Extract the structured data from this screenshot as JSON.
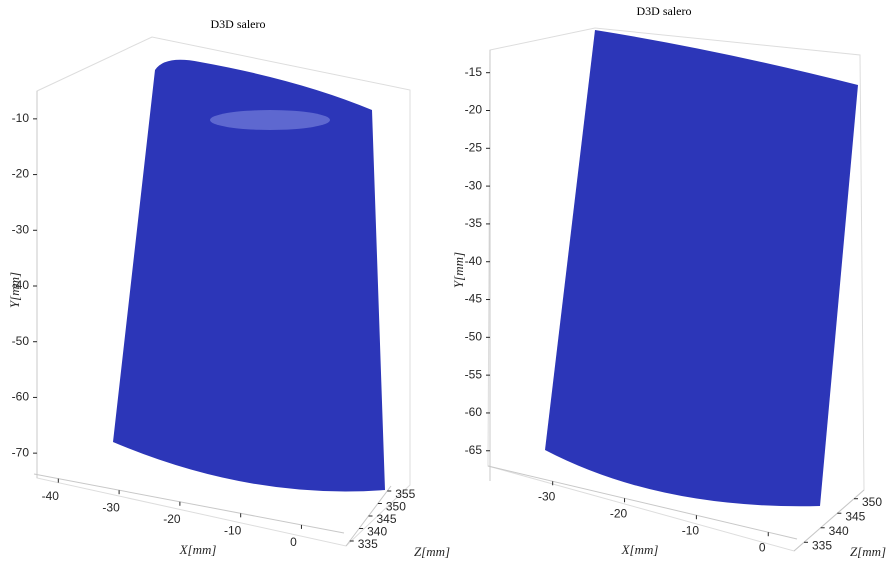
{
  "chart_data": [
    {
      "type": "surface3d",
      "title": "D3D salero",
      "xlabel": "X[mm]",
      "ylabel": "Y[mm]",
      "zlabel": "Z[mm]",
      "color": "#2c36b8",
      "xlim": [
        -44,
        7
      ],
      "xticks": [
        -40,
        -30,
        -20,
        -10,
        0
      ],
      "ylim": [
        -75,
        -5
      ],
      "yticks": [
        -70,
        -60,
        -50,
        -40,
        -30,
        -20,
        -10
      ],
      "zlim": [
        333,
        357
      ],
      "zticks": [
        335,
        340,
        345,
        350,
        355
      ]
    },
    {
      "type": "surface3d",
      "title": "D3D salero",
      "xlabel": "X[mm]",
      "ylabel": "Y[mm]",
      "zlabel": "Z[mm]",
      "color": "#2c36b8",
      "xlim": [
        -39,
        4
      ],
      "xticks": [
        -30,
        -20,
        -10,
        0
      ],
      "ylim": [
        -69,
        -12
      ],
      "yticks": [
        -65,
        -60,
        -55,
        -50,
        -45,
        -40,
        -35,
        -30,
        -25,
        -20,
        -15
      ],
      "zlim": [
        332,
        353
      ],
      "zticks": [
        335,
        340,
        345,
        350
      ]
    }
  ]
}
